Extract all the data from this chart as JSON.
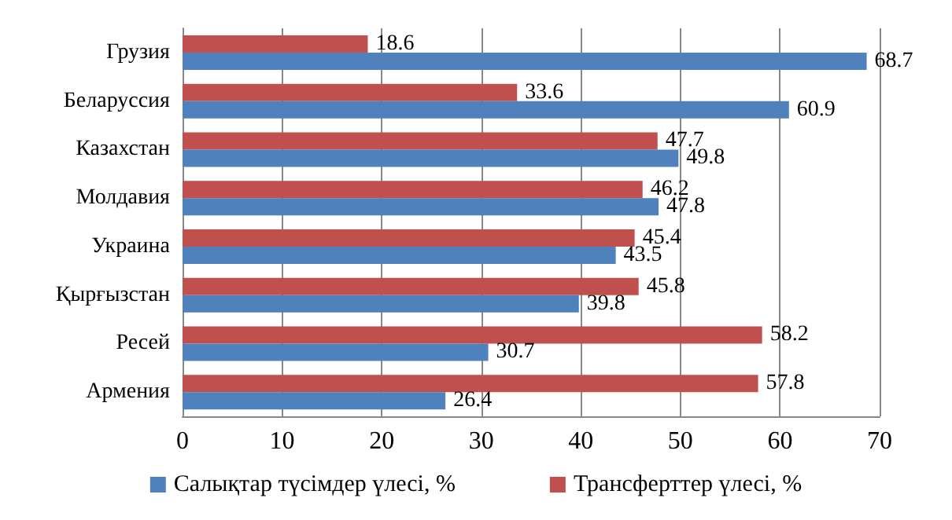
{
  "chart_data": {
    "type": "bar",
    "orientation": "horizontal",
    "categories": [
      "Грузия",
      "Беларуссия",
      "Казахстан",
      "Молдавия",
      "Украина",
      "Қырғызстан",
      "Ресей",
      "Армения"
    ],
    "series": [
      {
        "name": "Салықтар түсімдер үлесі, %",
        "color": "#4f81bd",
        "values": [
          68.7,
          60.9,
          49.8,
          47.8,
          43.5,
          39.8,
          30.7,
          26.4
        ]
      },
      {
        "name": "Трансферттер үлесі, %",
        "color": "#c0504d",
        "values": [
          18.6,
          33.6,
          47.7,
          46.2,
          45.4,
          45.8,
          58.2,
          57.8
        ]
      }
    ],
    "xlim": [
      0,
      70
    ],
    "xticks": [
      0,
      10,
      20,
      30,
      40,
      50,
      60,
      70
    ],
    "grid": "x",
    "legend": "bottom",
    "data_labels": true
  }
}
